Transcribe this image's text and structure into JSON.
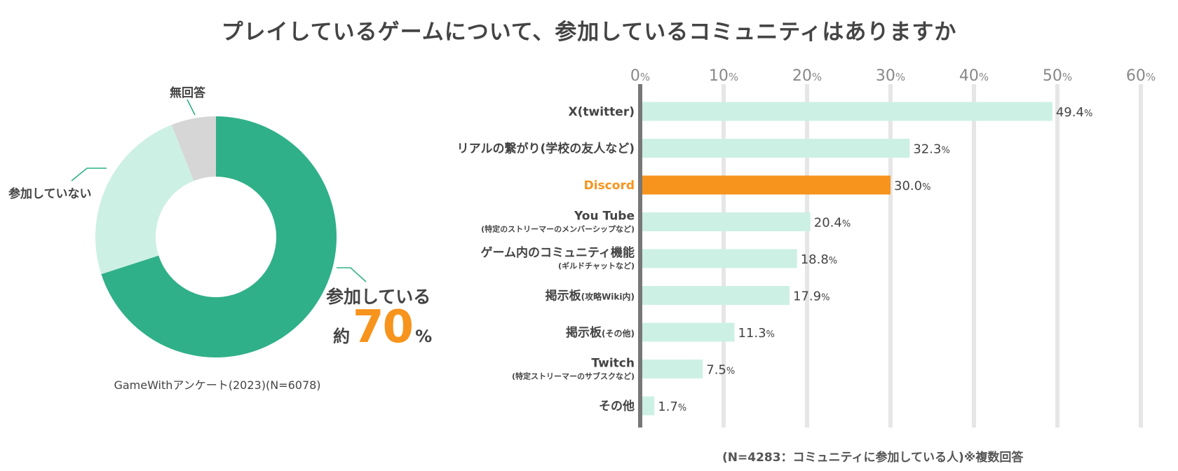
{
  "title": "プレイしているゲームについて、参加しているコミュニティはありますか",
  "colors": {
    "main_green": "#30b088",
    "light_green": "#cdf0e4",
    "gray": "#d6d6d6",
    "orange": "#f7941d",
    "axis": "#777777",
    "grid": "#e6e6e6"
  },
  "chart_data": [
    {
      "type": "pie",
      "variant": "donut",
      "slices": [
        {
          "name": "参加している",
          "value": 70,
          "color": "#30b088"
        },
        {
          "name": "参加していない",
          "value": 24,
          "color": "#cdf0e4"
        },
        {
          "name": "無回答",
          "value": 6,
          "color": "#d6d6d6"
        }
      ],
      "labels": {
        "no_answer": "無回答",
        "not_participating": "参加していない",
        "participating": "参加している",
        "approx": "約",
        "big_value": "70",
        "percent": "%"
      },
      "source": "GameWithアンケート(2023)(N=6078)"
    },
    {
      "type": "bar",
      "orientation": "horizontal",
      "xlim": [
        0,
        60
      ],
      "xticks": [
        0,
        10,
        20,
        30,
        40,
        50,
        60
      ],
      "tick_suffix": "%",
      "grid": true,
      "categories": [
        {
          "label": "X(twitter)",
          "sub": "",
          "value": 49.4,
          "value_label": "49.4",
          "highlight": false
        },
        {
          "label": "リアルの繋がり(学校の友人など)",
          "sub": "",
          "value": 32.3,
          "value_label": "32.3",
          "highlight": false
        },
        {
          "label": "Discord",
          "sub": "",
          "value": 30.0,
          "value_label": "30.0",
          "highlight": true
        },
        {
          "label": "You Tube",
          "sub": "(特定のストリーマーのメンバーシップなど)",
          "value": 20.4,
          "value_label": "20.4",
          "highlight": false
        },
        {
          "label": "ゲーム内のコミュニティ機能",
          "sub": "(ギルドチャットなど)",
          "value": 18.8,
          "value_label": "18.8",
          "highlight": false
        },
        {
          "label": "掲示板",
          "small": "(攻略Wiki内)",
          "sub": "",
          "value": 17.9,
          "value_label": "17.9",
          "highlight": false
        },
        {
          "label": "掲示板",
          "small": "(その他)",
          "sub": "",
          "value": 11.3,
          "value_label": "11.3",
          "highlight": false
        },
        {
          "label": "Twitch",
          "sub": "(特定ストリーマーのサブスクなど)",
          "value": 7.5,
          "value_label": "7.5",
          "highlight": false
        },
        {
          "label": "その他",
          "sub": "",
          "value": 1.7,
          "value_label": "1.7",
          "highlight": false
        }
      ],
      "value_suffix": "%",
      "note": "(N=4283：コミュニティに参加している人)※複数回答"
    }
  ]
}
